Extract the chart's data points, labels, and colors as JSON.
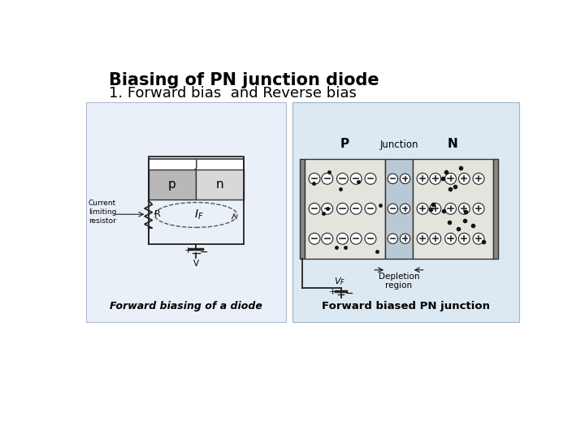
{
  "title_line1": "Biasing of PN junction diode",
  "title_line2": "1. Forward bias  and Reverse bias",
  "title_fontsize": 15,
  "subtitle_fontsize": 13,
  "bg_color": "#ffffff",
  "left_caption": "Forward biasing of a diode",
  "right_caption": "Forward biased PN junction",
  "panel_bg_left": "#eaf0f8",
  "panel_bg_right": "#dce8f2",
  "diode_p_color": "#b8b8b8",
  "diode_n_color": "#d8d8d8",
  "dep_color": "#b8c4d0",
  "wire_color": "#222222",
  "circle_edge": "#222222",
  "circle_fill": "#ffffff",
  "dot_color": "#111111"
}
